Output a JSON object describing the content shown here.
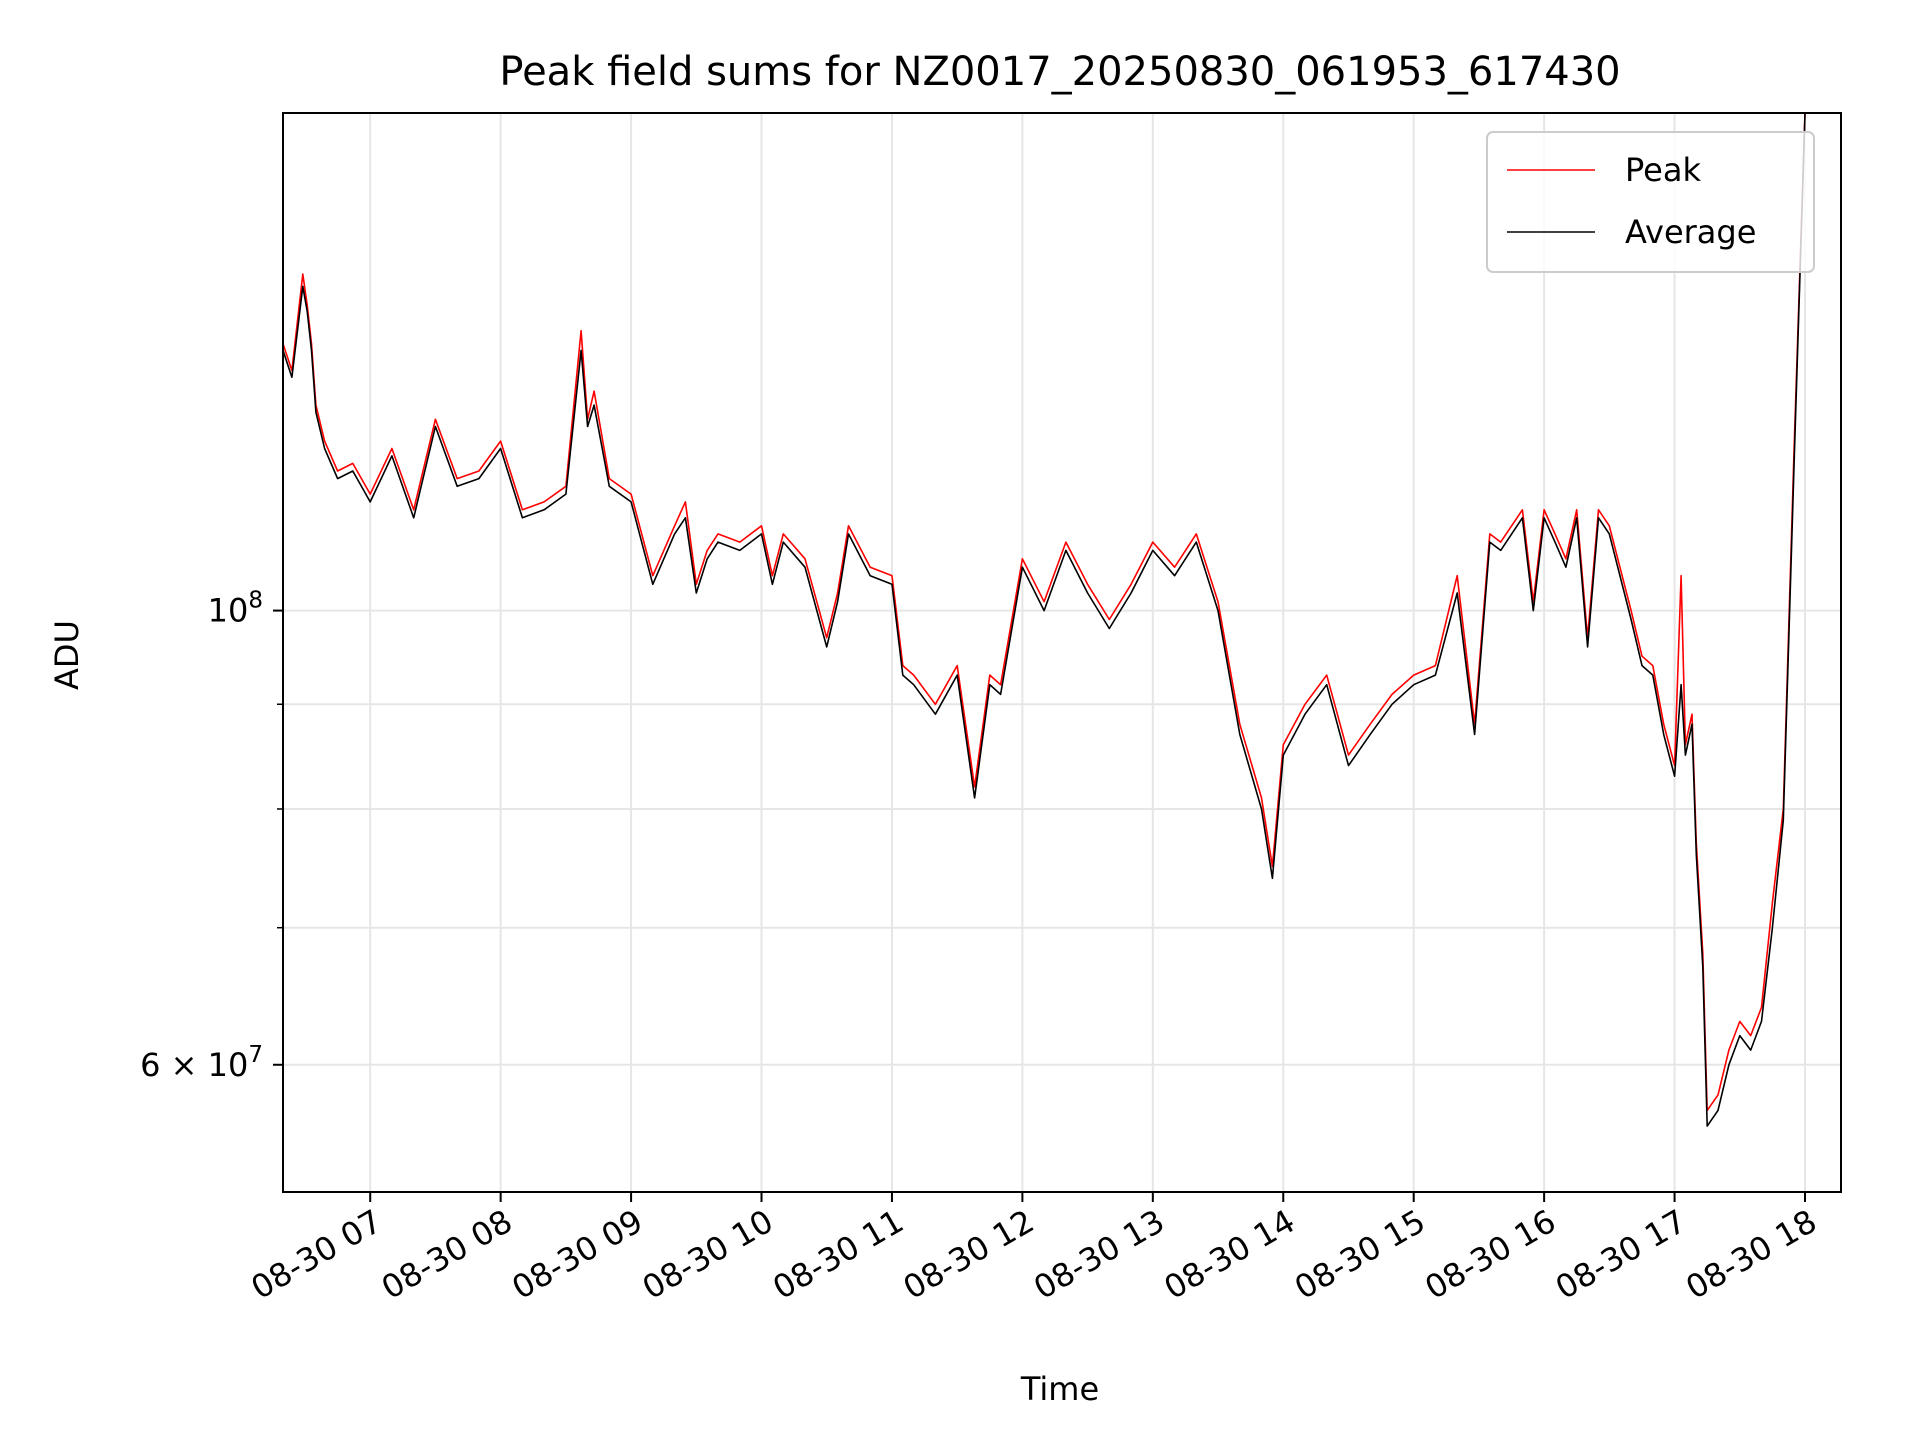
{
  "chart_data": {
    "type": "line",
    "title": "Peak field sums for NZ0017_20250830_061953_617430",
    "xlabel": "Time",
    "ylabel": "ADU",
    "yscale": "log",
    "ylim": [
      52000000,
      175000000
    ],
    "xlim": [
      "2025-08-30T06:19:53",
      "2025-08-30T18:00"
    ],
    "grid": true,
    "legend": "upper right",
    "x_ticks": [
      {
        "time": "2025-08-30T07:00",
        "label": "08-30 07"
      },
      {
        "time": "2025-08-30T08:00",
        "label": "08-30 08"
      },
      {
        "time": "2025-08-30T09:00",
        "label": "08-30 09"
      },
      {
        "time": "2025-08-30T10:00",
        "label": "08-30 10"
      },
      {
        "time": "2025-08-30T11:00",
        "label": "08-30 11"
      },
      {
        "time": "2025-08-30T12:00",
        "label": "08-30 12"
      },
      {
        "time": "2025-08-30T13:00",
        "label": "08-30 13"
      },
      {
        "time": "2025-08-30T14:00",
        "label": "08-30 14"
      },
      {
        "time": "2025-08-30T15:00",
        "label": "08-30 15"
      },
      {
        "time": "2025-08-30T16:00",
        "label": "08-30 16"
      },
      {
        "time": "2025-08-30T17:00",
        "label": "08-30 17"
      },
      {
        "time": "2025-08-30T18:00",
        "label": "08-30 18"
      }
    ],
    "y_ticks": [
      {
        "value": 100000000,
        "base": "10",
        "exp": "8"
      },
      {
        "value": 60000000,
        "base": "6 × 10",
        "exp": "7"
      }
    ],
    "y_minor_gridlines": [
      70000000,
      80000000,
      90000000
    ],
    "series": [
      {
        "name": "Peak",
        "color": "#ff0000",
        "x": [
          "2025-08-30T06:19:53",
          "2025-08-30T06:24",
          "2025-08-30T06:29",
          "2025-08-30T06:31",
          "2025-08-30T06:33",
          "2025-08-30T06:35",
          "2025-08-30T06:39",
          "2025-08-30T06:45",
          "2025-08-30T06:52",
          "2025-08-30T07:00",
          "2025-08-30T07:10",
          "2025-08-30T07:20",
          "2025-08-30T07:30",
          "2025-08-30T07:40",
          "2025-08-30T07:50",
          "2025-08-30T08:00",
          "2025-08-30T08:10",
          "2025-08-30T08:20",
          "2025-08-30T08:30",
          "2025-08-30T08:37",
          "2025-08-30T08:40",
          "2025-08-30T08:43",
          "2025-08-30T08:50",
          "2025-08-30T09:00",
          "2025-08-30T09:10",
          "2025-08-30T09:20",
          "2025-08-30T09:25",
          "2025-08-30T09:30",
          "2025-08-30T09:35",
          "2025-08-30T09:40",
          "2025-08-30T09:50",
          "2025-08-30T10:00",
          "2025-08-30T10:05",
          "2025-08-30T10:10",
          "2025-08-30T10:20",
          "2025-08-30T10:30",
          "2025-08-30T10:35",
          "2025-08-30T10:40",
          "2025-08-30T10:50",
          "2025-08-30T11:00",
          "2025-08-30T11:05",
          "2025-08-30T11:10",
          "2025-08-30T11:20",
          "2025-08-30T11:30",
          "2025-08-30T11:38",
          "2025-08-30T11:45",
          "2025-08-30T11:50",
          "2025-08-30T12:00",
          "2025-08-30T12:10",
          "2025-08-30T12:20",
          "2025-08-30T12:30",
          "2025-08-30T12:40",
          "2025-08-30T12:50",
          "2025-08-30T13:00",
          "2025-08-30T13:10",
          "2025-08-30T13:20",
          "2025-08-30T13:30",
          "2025-08-30T13:40",
          "2025-08-30T13:50",
          "2025-08-30T13:55",
          "2025-08-30T14:00",
          "2025-08-30T14:10",
          "2025-08-30T14:20",
          "2025-08-30T14:30",
          "2025-08-30T14:40",
          "2025-08-30T14:50",
          "2025-08-30T15:00",
          "2025-08-30T15:10",
          "2025-08-30T15:20",
          "2025-08-30T15:28",
          "2025-08-30T15:35",
          "2025-08-30T15:40",
          "2025-08-30T15:50",
          "2025-08-30T15:55",
          "2025-08-30T16:00",
          "2025-08-30T16:05",
          "2025-08-30T16:10",
          "2025-08-30T16:15",
          "2025-08-30T16:20",
          "2025-08-30T16:25",
          "2025-08-30T16:30",
          "2025-08-30T16:40",
          "2025-08-30T16:45",
          "2025-08-30T16:50",
          "2025-08-30T16:55",
          "2025-08-30T17:00",
          "2025-08-30T17:03",
          "2025-08-30T17:05",
          "2025-08-30T17:08",
          "2025-08-30T17:10",
          "2025-08-30T17:13",
          "2025-08-30T17:15",
          "2025-08-30T17:20",
          "2025-08-30T17:25",
          "2025-08-30T17:30",
          "2025-08-30T17:35",
          "2025-08-30T17:40",
          "2025-08-30T17:45",
          "2025-08-30T17:50",
          "2025-08-30T17:55",
          "2025-08-30T18:00"
        ],
        "values": [
          135000000,
          131000000,
          146000000,
          141000000,
          135000000,
          126000000,
          121000000,
          117000000,
          118000000,
          114000000,
          120000000,
          112000000,
          124000000,
          116000000,
          117000000,
          121000000,
          112000000,
          113000000,
          115000000,
          137000000,
          124000000,
          128000000,
          116000000,
          114000000,
          104000000,
          110000000,
          113000000,
          103000000,
          107000000,
          109000000,
          108000000,
          110000000,
          104000000,
          109000000,
          106000000,
          97000000,
          102000000,
          110000000,
          105000000,
          104000000,
          94000000,
          93000000,
          90000000,
          94000000,
          82000000,
          93000000,
          92000000,
          106000000,
          101000000,
          108000000,
          103000000,
          99000000,
          103000000,
          108000000,
          105000000,
          109000000,
          101000000,
          88000000,
          81000000,
          75000000,
          86000000,
          90000000,
          93000000,
          85000000,
          88000000,
          91000000,
          93000000,
          94000000,
          104000000,
          88000000,
          109000000,
          108000000,
          112000000,
          101000000,
          112000000,
          109000000,
          106000000,
          112000000,
          97000000,
          112000000,
          110000000,
          100000000,
          95000000,
          94000000,
          88000000,
          84000000,
          104000000,
          86000000,
          89000000,
          77000000,
          68000000,
          57000000,
          58000000,
          61000000,
          63000000,
          62000000,
          64000000,
          72000000,
          80000000,
          120000000,
          175000000
        ]
      },
      {
        "name": "Average",
        "color": "#000000",
        "x": [
          "2025-08-30T06:19:53",
          "2025-08-30T06:24",
          "2025-08-30T06:29",
          "2025-08-30T06:31",
          "2025-08-30T06:33",
          "2025-08-30T06:35",
          "2025-08-30T06:39",
          "2025-08-30T06:45",
          "2025-08-30T06:52",
          "2025-08-30T07:00",
          "2025-08-30T07:10",
          "2025-08-30T07:20",
          "2025-08-30T07:30",
          "2025-08-30T07:40",
          "2025-08-30T07:50",
          "2025-08-30T08:00",
          "2025-08-30T08:10",
          "2025-08-30T08:20",
          "2025-08-30T08:30",
          "2025-08-30T08:37",
          "2025-08-30T08:40",
          "2025-08-30T08:43",
          "2025-08-30T08:50",
          "2025-08-30T09:00",
          "2025-08-30T09:10",
          "2025-08-30T09:20",
          "2025-08-30T09:25",
          "2025-08-30T09:30",
          "2025-08-30T09:35",
          "2025-08-30T09:40",
          "2025-08-30T09:50",
          "2025-08-30T10:00",
          "2025-08-30T10:05",
          "2025-08-30T10:10",
          "2025-08-30T10:20",
          "2025-08-30T10:30",
          "2025-08-30T10:35",
          "2025-08-30T10:40",
          "2025-08-30T10:50",
          "2025-08-30T11:00",
          "2025-08-30T11:05",
          "2025-08-30T11:10",
          "2025-08-30T11:20",
          "2025-08-30T11:30",
          "2025-08-30T11:38",
          "2025-08-30T11:45",
          "2025-08-30T11:50",
          "2025-08-30T12:00",
          "2025-08-30T12:10",
          "2025-08-30T12:20",
          "2025-08-30T12:30",
          "2025-08-30T12:40",
          "2025-08-30T12:50",
          "2025-08-30T13:00",
          "2025-08-30T13:10",
          "2025-08-30T13:20",
          "2025-08-30T13:30",
          "2025-08-30T13:40",
          "2025-08-30T13:50",
          "2025-08-30T13:55",
          "2025-08-30T14:00",
          "2025-08-30T14:10",
          "2025-08-30T14:20",
          "2025-08-30T14:30",
          "2025-08-30T14:40",
          "2025-08-30T14:50",
          "2025-08-30T15:00",
          "2025-08-30T15:10",
          "2025-08-30T15:20",
          "2025-08-30T15:28",
          "2025-08-30T15:35",
          "2025-08-30T15:40",
          "2025-08-30T15:50",
          "2025-08-30T15:55",
          "2025-08-30T16:00",
          "2025-08-30T16:05",
          "2025-08-30T16:10",
          "2025-08-30T16:15",
          "2025-08-30T16:20",
          "2025-08-30T16:25",
          "2025-08-30T16:30",
          "2025-08-30T16:40",
          "2025-08-30T16:45",
          "2025-08-30T16:50",
          "2025-08-30T16:55",
          "2025-08-30T17:00",
          "2025-08-30T17:03",
          "2025-08-30T17:05",
          "2025-08-30T17:08",
          "2025-08-30T17:10",
          "2025-08-30T17:13",
          "2025-08-30T17:15",
          "2025-08-30T17:20",
          "2025-08-30T17:25",
          "2025-08-30T17:30",
          "2025-08-30T17:35",
          "2025-08-30T17:40",
          "2025-08-30T17:45",
          "2025-08-30T17:50",
          "2025-08-30T17:55",
          "2025-08-30T18:00"
        ],
        "values": [
          134000000,
          130000000,
          144000000,
          140000000,
          134000000,
          125000000,
          120000000,
          116000000,
          117000000,
          113000000,
          119000000,
          111000000,
          123000000,
          115000000,
          116000000,
          120000000,
          111000000,
          112000000,
          114000000,
          134000000,
          123000000,
          126000000,
          115000000,
          113000000,
          103000000,
          109000000,
          111000000,
          102000000,
          106000000,
          108000000,
          107000000,
          109000000,
          103000000,
          108000000,
          105000000,
          96000000,
          101000000,
          109000000,
          104000000,
          103000000,
          93000000,
          92000000,
          89000000,
          93000000,
          81000000,
          92000000,
          91000000,
          105000000,
          100000000,
          107000000,
          102000000,
          98000000,
          102000000,
          107000000,
          104000000,
          108000000,
          100000000,
          87000000,
          80000000,
          74000000,
          85000000,
          89000000,
          92000000,
          84000000,
          87000000,
          90000000,
          92000000,
          93000000,
          102000000,
          87000000,
          108000000,
          107000000,
          111000000,
          100000000,
          111000000,
          108000000,
          105000000,
          111000000,
          96000000,
          111000000,
          109000000,
          99000000,
          94000000,
          93000000,
          87000000,
          83000000,
          92000000,
          85000000,
          88000000,
          76000000,
          67000000,
          56000000,
          57000000,
          60000000,
          62000000,
          61000000,
          63000000,
          70000000,
          79000000,
          118000000,
          175000000
        ]
      }
    ]
  }
}
